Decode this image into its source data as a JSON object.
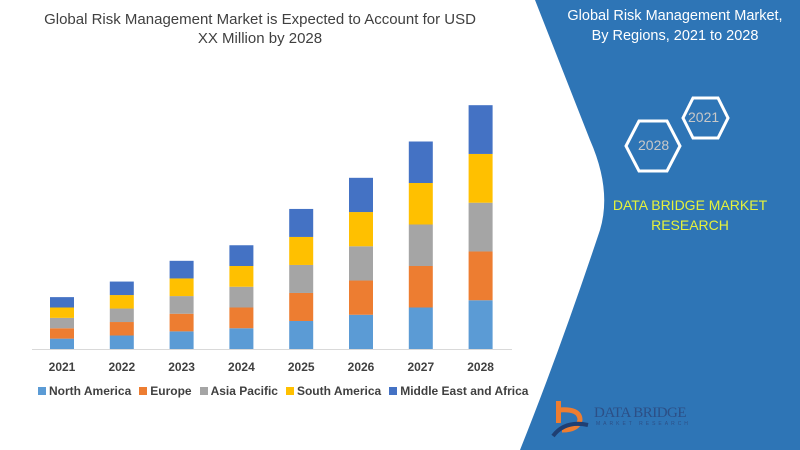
{
  "chart_data": {
    "type": "bar",
    "stacked": true,
    "title": "Global Risk Management Market is Expected to Account for USD XX Million by 2028",
    "categories": [
      "2021",
      "2022",
      "2023",
      "2024",
      "2025",
      "2026",
      "2027",
      "2028"
    ],
    "series": [
      {
        "name": "North America",
        "color": "#5b9bd5",
        "values": [
          10,
          13,
          17,
          20,
          27,
          33,
          40,
          47
        ]
      },
      {
        "name": "Europe",
        "color": "#ed7d31",
        "values": [
          10,
          13,
          17,
          20,
          27,
          33,
          40,
          47
        ]
      },
      {
        "name": "Asia Pacific",
        "color": "#a5a5a5",
        "values": [
          10,
          13,
          17,
          20,
          27,
          33,
          40,
          47
        ]
      },
      {
        "name": "South America",
        "color": "#ffc000",
        "values": [
          10,
          13,
          17,
          20,
          27,
          33,
          40,
          47
        ]
      },
      {
        "name": "Middle East and Africa",
        "color": "#4472c4",
        "values": [
          10,
          13,
          17,
          20,
          27,
          33,
          40,
          47
        ]
      }
    ],
    "ylim": [
      0,
      240
    ],
    "y_axis_visible": false,
    "grid": false,
    "legend_placement": "bottom"
  },
  "panel": {
    "title_line1": "Global Risk Management Market,",
    "title_line2": "By Regions, 2021 to 2028",
    "hex_a": "2021",
    "hex_b": "2028",
    "brand_line1": "DATA BRIDGE MARKET",
    "brand_line2": "RESEARCH",
    "color": "#2e75b6",
    "logo_text": "DATA BRIDGE",
    "logo_sub": "MARKET RESEARCH"
  }
}
